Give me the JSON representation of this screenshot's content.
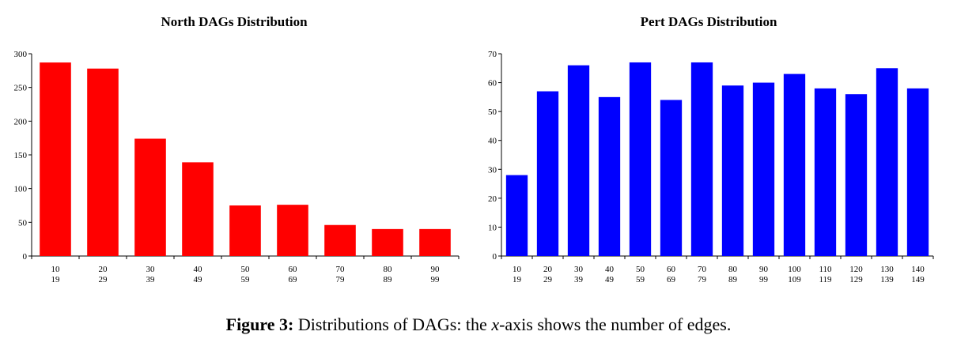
{
  "chart_data": [
    {
      "type": "bar",
      "title": "North DAGs Distribution",
      "xlabel": "",
      "ylabel": "",
      "categories": [
        [
          "10",
          "19"
        ],
        [
          "20",
          "29"
        ],
        [
          "30",
          "39"
        ],
        [
          "40",
          "49"
        ],
        [
          "50",
          "59"
        ],
        [
          "60",
          "69"
        ],
        [
          "70",
          "79"
        ],
        [
          "80",
          "89"
        ],
        [
          "90",
          "99"
        ]
      ],
      "values": [
        287,
        278,
        174,
        139,
        75,
        76,
        46,
        40,
        40
      ],
      "ylim": [
        0,
        300
      ],
      "yticks": [
        0,
        50,
        100,
        150,
        200,
        250,
        300
      ],
      "color": "#ff0000",
      "grid": false
    },
    {
      "type": "bar",
      "title": "Pert DAGs Distribution",
      "xlabel": "",
      "ylabel": "",
      "categories": [
        [
          "10",
          "19"
        ],
        [
          "20",
          "29"
        ],
        [
          "30",
          "39"
        ],
        [
          "40",
          "49"
        ],
        [
          "50",
          "59"
        ],
        [
          "60",
          "69"
        ],
        [
          "70",
          "79"
        ],
        [
          "80",
          "89"
        ],
        [
          "90",
          "99"
        ],
        [
          "100",
          "109"
        ],
        [
          "110",
          "119"
        ],
        [
          "120",
          "129"
        ],
        [
          "130",
          "139"
        ],
        [
          "140",
          "149"
        ]
      ],
      "values": [
        28,
        57,
        66,
        55,
        67,
        54,
        67,
        59,
        60,
        63,
        58,
        56,
        65,
        58
      ],
      "ylim": [
        0,
        70
      ],
      "yticks": [
        0,
        10,
        20,
        30,
        40,
        50,
        60,
        70
      ],
      "color": "#0000ff",
      "grid": false
    }
  ],
  "caption": {
    "label": "Figure 3:",
    "text_before": "Distributions of DAGs: the ",
    "variable": "x",
    "text_after": "-axis shows the number of edges."
  }
}
